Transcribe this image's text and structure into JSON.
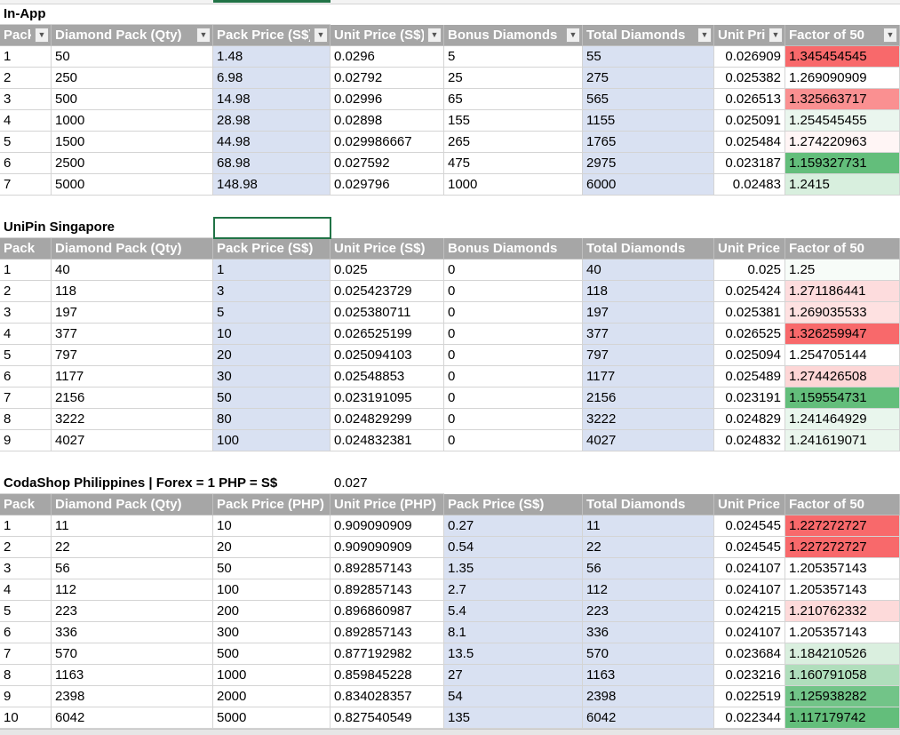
{
  "colors": {
    "header": "#a6a6a6",
    "highlight": "#d9e1f2",
    "scale_low": "#63be7b",
    "scale_mid": "#ffffff",
    "scale_high": "#f8696b",
    "selection": "#217346"
  },
  "tables": [
    {
      "title": "In-App",
      "filters": true,
      "blue_cols": [
        2,
        5
      ],
      "headers": [
        "Pack",
        "Diamond Pack (Qty)",
        "Pack Price (S$)",
        "Unit Price (S$)",
        "Bonus Diamonds",
        "Total Diamonds",
        "Unit Price",
        "Factor of 50"
      ],
      "rows": [
        [
          "1",
          "50",
          "1.48",
          "0.0296",
          "5",
          "55",
          "0.026909",
          "1.345454545"
        ],
        [
          "2",
          "250",
          "6.98",
          "0.02792",
          "25",
          "275",
          "0.025382",
          "1.269090909"
        ],
        [
          "3",
          "500",
          "14.98",
          "0.02996",
          "65",
          "565",
          "0.026513",
          "1.325663717"
        ],
        [
          "4",
          "1000",
          "28.98",
          "0.02898",
          "155",
          "1155",
          "0.025091",
          "1.254545455"
        ],
        [
          "5",
          "1500",
          "44.98",
          "0.029986667",
          "265",
          "1765",
          "0.025484",
          "1.274220963"
        ],
        [
          "6",
          "2500",
          "68.98",
          "0.027592",
          "475",
          "2975",
          "0.023187",
          "1.159327731"
        ],
        [
          "7",
          "5000",
          "148.98",
          "0.029796",
          "1000",
          "6000",
          "0.02483",
          "1.2415"
        ]
      ]
    },
    {
      "title": "UniPin Singapore",
      "filters": false,
      "blue_cols": [
        2,
        5
      ],
      "headers": [
        "Pack",
        "Diamond Pack (Qty)",
        "Pack Price (S$)",
        "Unit Price (S$)",
        "Bonus Diamonds",
        "Total Diamonds",
        "Unit Price",
        "Factor of 50"
      ],
      "rows": [
        [
          "1",
          "40",
          "1",
          "0.025",
          "0",
          "40",
          "0.025",
          "1.25"
        ],
        [
          "2",
          "118",
          "3",
          "0.025423729",
          "0",
          "118",
          "0.025424",
          "1.271186441"
        ],
        [
          "3",
          "197",
          "5",
          "0.025380711",
          "0",
          "197",
          "0.025381",
          "1.269035533"
        ],
        [
          "4",
          "377",
          "10",
          "0.026525199",
          "0",
          "377",
          "0.026525",
          "1.326259947"
        ],
        [
          "5",
          "797",
          "20",
          "0.025094103",
          "0",
          "797",
          "0.025094",
          "1.254705144"
        ],
        [
          "6",
          "1177",
          "30",
          "0.02548853",
          "0",
          "1177",
          "0.025489",
          "1.274426508"
        ],
        [
          "7",
          "2156",
          "50",
          "0.023191095",
          "0",
          "2156",
          "0.023191",
          "1.159554731"
        ],
        [
          "8",
          "3222",
          "80",
          "0.024829299",
          "0",
          "3222",
          "0.024829",
          "1.241464929"
        ],
        [
          "9",
          "4027",
          "100",
          "0.024832381",
          "0",
          "4027",
          "0.024832",
          "1.241619071"
        ]
      ]
    },
    {
      "title": "CodaShop Philippines | Forex = 1 PHP = S$",
      "forex": "0.027",
      "filters": false,
      "blue_cols": [
        4,
        5
      ],
      "headers": [
        "Pack",
        "Diamond Pack (Qty)",
        "Pack Price (PHP)",
        "Unit Price (PHP)",
        "Pack Price (S$)",
        "Total Diamonds",
        "Unit Price",
        "Factor of 50"
      ],
      "rows": [
        [
          "1",
          "11",
          "10",
          "0.909090909",
          "0.27",
          "11",
          "0.024545",
          "1.227272727"
        ],
        [
          "2",
          "22",
          "20",
          "0.909090909",
          "0.54",
          "22",
          "0.024545",
          "1.227272727"
        ],
        [
          "3",
          "56",
          "50",
          "0.892857143",
          "1.35",
          "56",
          "0.024107",
          "1.205357143"
        ],
        [
          "4",
          "112",
          "100",
          "0.892857143",
          "2.7",
          "112",
          "0.024107",
          "1.205357143"
        ],
        [
          "5",
          "223",
          "200",
          "0.896860987",
          "5.4",
          "223",
          "0.024215",
          "1.210762332"
        ],
        [
          "6",
          "336",
          "300",
          "0.892857143",
          "8.1",
          "336",
          "0.024107",
          "1.205357143"
        ],
        [
          "7",
          "570",
          "500",
          "0.877192982",
          "13.5",
          "570",
          "0.023684",
          "1.184210526"
        ],
        [
          "8",
          "1163",
          "1000",
          "0.859845228",
          "27",
          "1163",
          "0.023216",
          "1.160791058"
        ],
        [
          "9",
          "2398",
          "2000",
          "0.834028357",
          "54",
          "2398",
          "0.022519",
          "1.125938282"
        ],
        [
          "10",
          "6042",
          "5000",
          "0.827540549",
          "135",
          "6042",
          "0.022344",
          "1.117179742"
        ]
      ]
    }
  ]
}
